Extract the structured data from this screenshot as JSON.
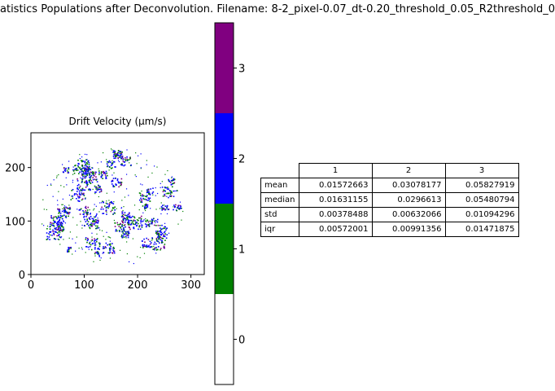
{
  "figure": {
    "title": "atistics Populations after Deconvolution. Filename: 8-2_pixel-0.07_dt-0.20_threshold_0.05_R2threshold_0"
  },
  "chart_data": [
    {
      "type": "heatmap",
      "title": "Drift Velocity (μm/s)",
      "x_ticks": [
        "0",
        "100",
        "200",
        "300"
      ],
      "y_ticks": [
        "0",
        "100",
        "200"
      ],
      "xlim": [
        0,
        325
      ],
      "ylim": [
        0,
        265
      ],
      "grid": false,
      "colors": [
        "#ffffff",
        "#008000",
        "#0000ff",
        "#800080"
      ]
    },
    {
      "type": "colorbar",
      "ticks": [
        "0",
        "1",
        "2",
        "3"
      ],
      "range": [
        -0.5,
        3.5
      ],
      "colors": [
        "#ffffff",
        "#008000",
        "#0000ff",
        "#800080"
      ]
    },
    {
      "type": "table",
      "columns": [
        "1",
        "2",
        "3"
      ],
      "rows": [
        {
          "label": "mean",
          "values": [
            "0.01572663",
            "0.03078177",
            "0.05827919"
          ]
        },
        {
          "label": "median",
          "values": [
            "0.01631155",
            "0.0296613",
            "0.05480794"
          ]
        },
        {
          "label": "std",
          "values": [
            "0.00378488",
            "0.00632066",
            "0.01094296"
          ]
        },
        {
          "label": "iqr",
          "values": [
            "0.00572001",
            "0.00991356",
            "0.01471875"
          ]
        }
      ]
    }
  ]
}
